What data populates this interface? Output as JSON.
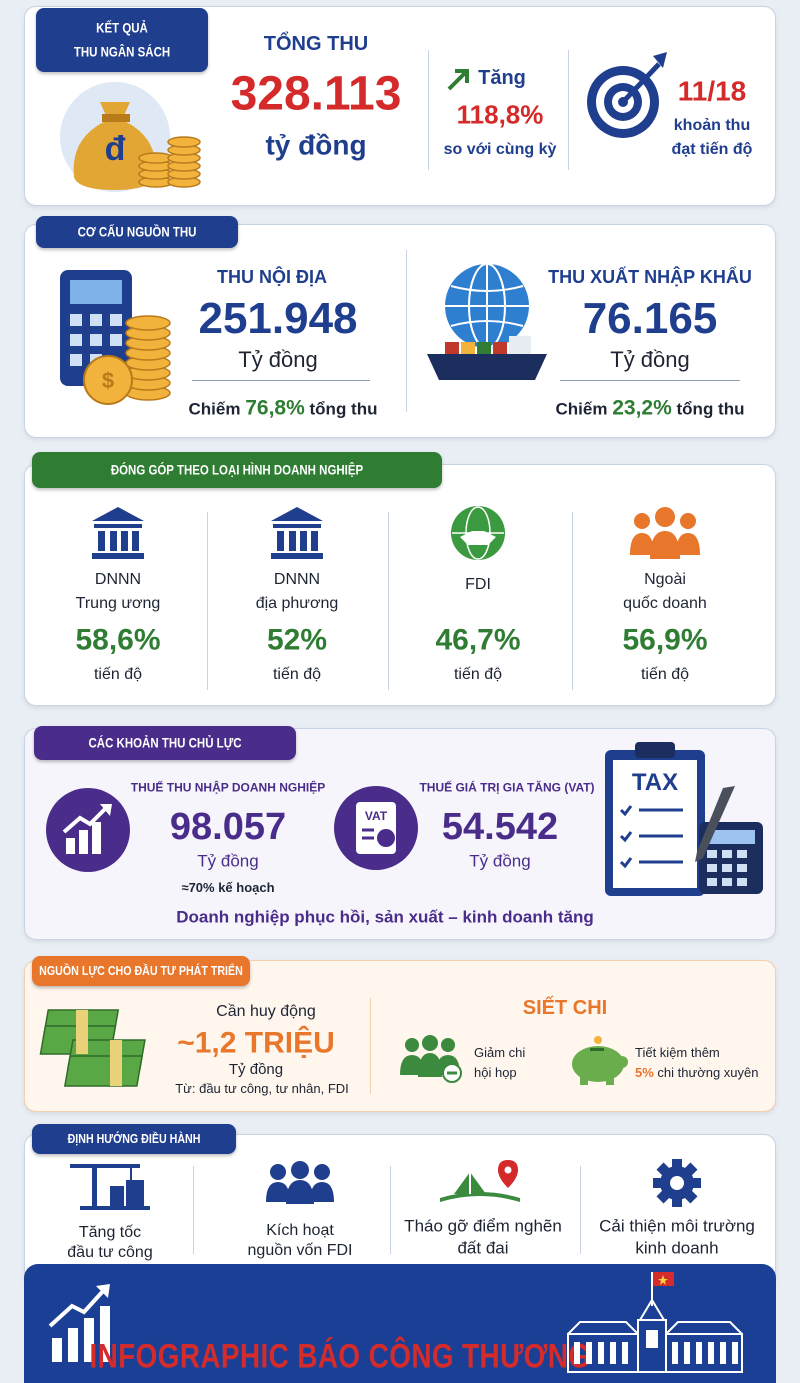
{
  "revenue": {
    "badge_lines": [
      "KẾT QUẢ",
      "THU NGÂN SÁCH"
    ],
    "total_label": "TỔNG THU",
    "total_value": "328.113",
    "total_unit": "tỷ đồng",
    "growth_label": "Tăng",
    "growth_value": "118,8%",
    "growth_note": "so với cùng kỳ",
    "target_value": "11/18",
    "target_note_lines": [
      "khoản thu",
      "đạt tiến độ"
    ]
  },
  "structure": {
    "badge": "CƠ CẤU NGUỒN THU",
    "items": [
      {
        "label": "THU NỘI ĐỊA",
        "value": "251.948",
        "unit": "Tỷ đồng",
        "share_prefix": "Chiếm",
        "share": "76,8%",
        "share_suffix": "tổng thu"
      },
      {
        "label": "THU XUẤT NHẬP KHẨU",
        "value": "76.165",
        "unit": "Tỷ đồng",
        "share_prefix": "Chiếm",
        "share": "23,2%",
        "share_suffix": "tổng thu"
      }
    ]
  },
  "contribution": {
    "badge": "ĐÓNG GÓP THEO LOẠI HÌNH DOANH NGHIỆP",
    "items": [
      {
        "name_lines": [
          "DNNN",
          "Trung ương"
        ],
        "value": "58,6%",
        "note": "tiến độ"
      },
      {
        "name_lines": [
          "DNNN",
          "địa phương"
        ],
        "value": "52%",
        "note": "tiến độ"
      },
      {
        "name_lines": [
          "FDI"
        ],
        "value": "46,7%",
        "note": "tiến độ"
      },
      {
        "name_lines": [
          "Ngoài",
          "quốc doanh"
        ],
        "value": "56,9%",
        "note": "tiến độ"
      }
    ]
  },
  "key_taxes": {
    "badge": "CÁC KHOẢN THU CHỦ LỰC",
    "items": [
      {
        "label": "THUẾ THU NHẬP DOANH NGHIỆP",
        "value": "98.057",
        "unit": "Tỷ đồng",
        "note": "≈70% kế hoạch"
      },
      {
        "label": "THUẾ GIÁ TRỊ GIA TĂNG (VAT)",
        "value": "54.542",
        "unit": "Tỷ đồng"
      }
    ],
    "summary": "Doanh nghiệp phục hồi, sản xuất – kinh doanh tăng"
  },
  "investment": {
    "badge": "NGUỒN LỰC CHO ĐẦU TƯ PHÁT TRIỂN",
    "mobilize_label": "Cần huy động",
    "mobilize_value": "~1,2 TRIỆU",
    "mobilize_unit": "Tỷ đồng",
    "mobilize_source": "Từ: đầu tư công, tư nhân, FDI",
    "cut_title": "SIẾT CHI",
    "cut_items": [
      {
        "lines": [
          "Giảm chi",
          "hội họp"
        ]
      },
      {
        "line1": "Tiết kiệm thêm",
        "highlight": "5%",
        "line2": "chi thường xuyên"
      }
    ]
  },
  "direction": {
    "badge": "ĐỊNH HƯỚNG ĐIỀU HÀNH",
    "items": [
      {
        "lines": [
          "Tăng tốc",
          "đầu tư công"
        ]
      },
      {
        "lines": [
          "Kích hoạt",
          "nguồn vốn FDI"
        ]
      },
      {
        "lines": [
          "Tháo gỡ điểm nghẽn",
          "đất đai"
        ]
      },
      {
        "lines": [
          "Cải thiện môi trường",
          "kinh doanh"
        ]
      }
    ]
  },
  "icons": {
    "money_bag": "đ",
    "coin": "$",
    "vat": "VAT",
    "tax": "TAX"
  },
  "footer": {
    "title": "INFOGRAPHIC BÁO CÔNG THƯƠNG"
  }
}
